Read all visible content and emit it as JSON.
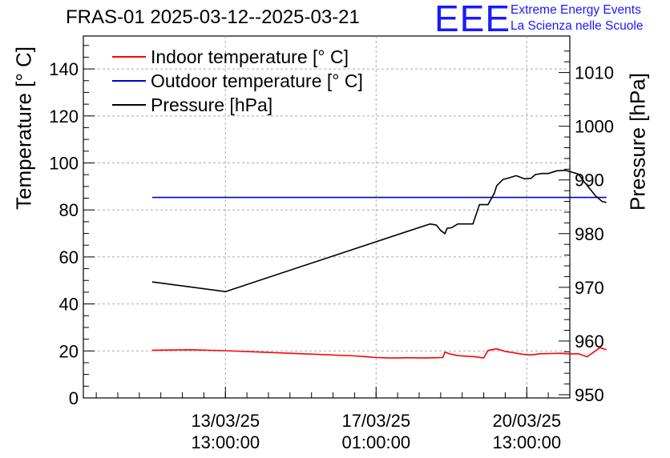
{
  "header": {
    "title": "FRAS-01 2025-03-12--2025-03-21"
  },
  "logo": {
    "mark": "EEE",
    "line1": "Extreme Energy Events",
    "line2": "La Scienza nelle Scuole"
  },
  "chart_data": {
    "type": "line",
    "title": "FRAS-01 2025-03-12--2025-03-21",
    "xlabel": "",
    "ylabel_left": "Temperature [° C]",
    "ylabel_right": "Pressure [hPa]",
    "y_left_range": [
      0,
      154
    ],
    "y_left_ticks": [
      "0",
      "20",
      "40",
      "60",
      "80",
      "100",
      "120",
      "140"
    ],
    "y_right_range": [
      949.4,
      1016.8
    ],
    "y_right_ticks": [
      "950",
      "960",
      "970",
      "980",
      "990",
      "1000",
      "1010"
    ],
    "x_ticks": [
      {
        "line1": "13/03/25",
        "line2": "13:00:00",
        "day": 1.0
      },
      {
        "line1": "17/03/25",
        "line2": "01:00:00",
        "day": 4.5
      },
      {
        "line1": "20/03/25",
        "line2": "13:00:00",
        "day": 8.0
      }
    ],
    "x_range_days": [
      -2.3,
      9.0
    ],
    "series": [
      {
        "name": "Indoor temperature [° C]",
        "color": "#ff0000",
        "axis": "left",
        "x": [
          -0.7,
          0.2,
          1.0,
          2.5,
          4.0,
          4.3,
          4.5,
          4.8,
          5.0,
          5.3,
          5.6,
          5.85,
          6.05,
          6.1,
          6.2,
          6.4,
          6.8,
          7.0,
          7.1,
          7.3,
          7.5,
          7.7,
          7.9,
          8.1,
          8.3,
          8.6,
          8.8,
          9.0,
          9.2,
          9.4,
          9.7,
          9.85
        ],
        "y": [
          20.3,
          20.5,
          20.1,
          19.0,
          17.9,
          17.5,
          17.2,
          17.0,
          17.0,
          17.1,
          17.0,
          17.1,
          17.2,
          19.5,
          18.8,
          18.0,
          17.5,
          17.0,
          20.2,
          20.9,
          19.8,
          19.2,
          18.6,
          18.3,
          18.8,
          18.9,
          19.0,
          18.7,
          18.8,
          17.5,
          21.4,
          20.5
        ]
      },
      {
        "name": "Outdoor temperature [° C]",
        "color": "#0000cc",
        "axis": "left",
        "x": [
          -0.7,
          9.85
        ],
        "y": [
          85.3,
          85.3
        ]
      },
      {
        "name": "Pressure [hPa]",
        "color": "#000000",
        "axis": "right",
        "x": [
          -0.7,
          1.0,
          5.75,
          5.9,
          6.0,
          6.1,
          6.15,
          6.25,
          6.4,
          6.75,
          6.9,
          7.1,
          7.25,
          7.3,
          7.45,
          7.6,
          7.75,
          7.95,
          8.1,
          8.2,
          8.35,
          8.5,
          8.7,
          8.9,
          9.2,
          9.35,
          9.6,
          9.75,
          9.85
        ],
        "y": [
          971.0,
          969.2,
          981.8,
          981.6,
          980.6,
          980.0,
          981.0,
          981.1,
          981.8,
          981.8,
          985.4,
          985.4,
          987.6,
          988.9,
          990.1,
          990.4,
          990.8,
          990.2,
          990.3,
          991.0,
          991.2,
          991.2,
          991.7,
          991.8,
          991.1,
          989.5,
          987.0,
          986.0,
          985.8
        ]
      }
    ],
    "grid": true,
    "legend_position": "top-left"
  }
}
